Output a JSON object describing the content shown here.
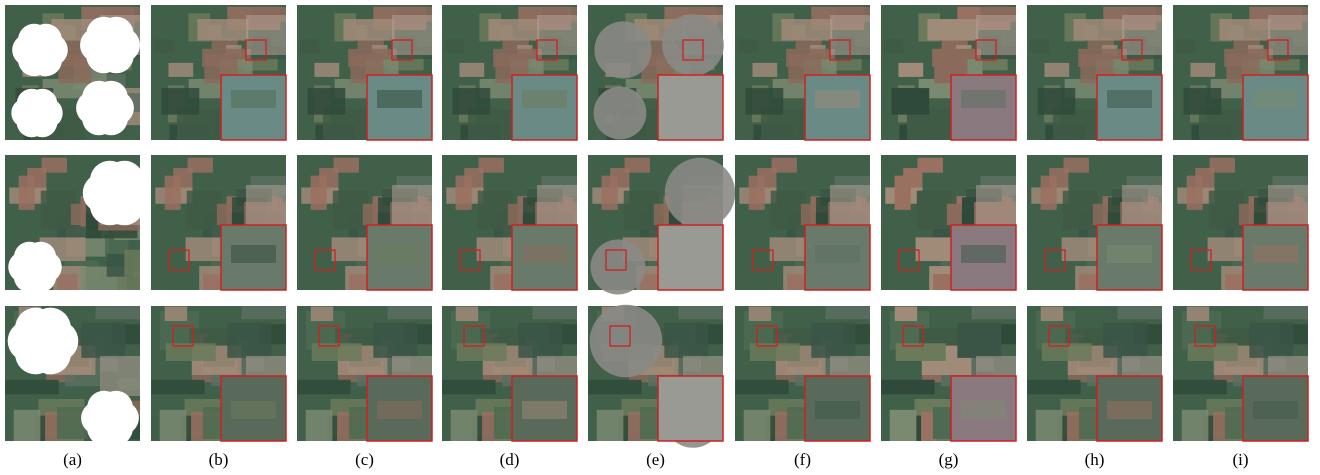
{
  "panels": {
    "labels": [
      "(a)",
      "(b)",
      "(c)",
      "(d)",
      "(e)",
      "(f)",
      "(g)",
      "(h)",
      "(i)"
    ]
  }
}
